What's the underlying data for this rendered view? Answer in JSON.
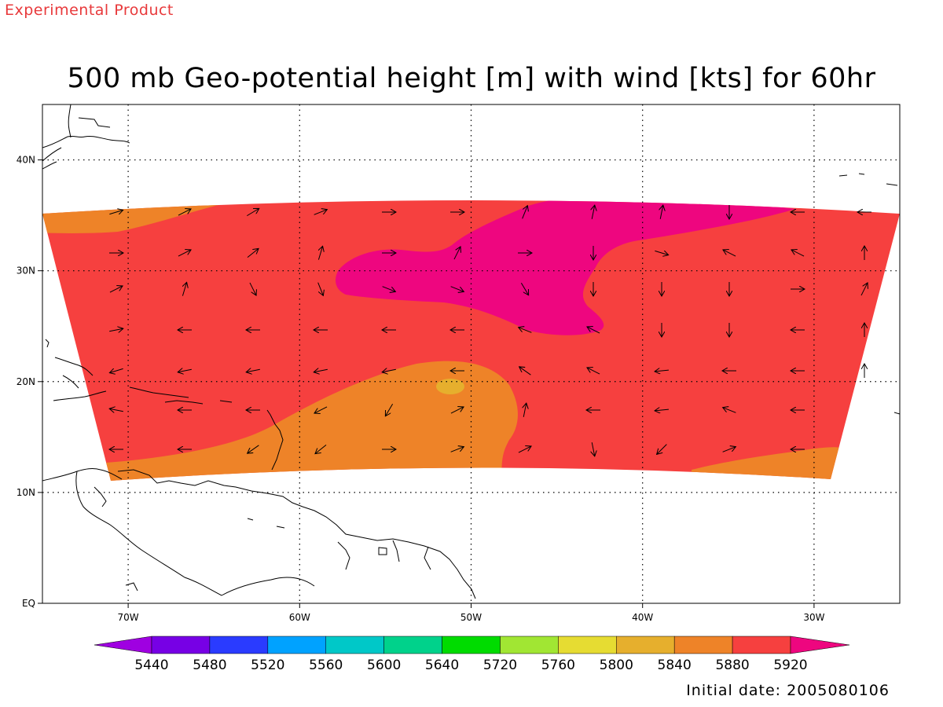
{
  "header": {
    "experimental_label": "Experimental Product",
    "title": "500 mb Geo-potential height [m] with wind [kts] for 60hr"
  },
  "footer": {
    "initial_date": "Initial date: 2005080106"
  },
  "map": {
    "lon_range": [
      -75,
      -25
    ],
    "lat_range": [
      0,
      45
    ],
    "grid": "dotted",
    "lon_ticks": [
      {
        "value": -70,
        "label": "70W"
      },
      {
        "value": -60,
        "label": "60W"
      },
      {
        "value": -50,
        "label": "50W"
      },
      {
        "value": -40,
        "label": "40W"
      },
      {
        "value": -30,
        "label": "30W"
      }
    ],
    "lat_ticks": [
      {
        "value": 0,
        "label": "EQ"
      },
      {
        "value": 10,
        "label": "10N"
      },
      {
        "value": 20,
        "label": "20N"
      },
      {
        "value": 30,
        "label": "30N"
      },
      {
        "value": 40,
        "label": "40N"
      }
    ],
    "colors": {
      "h5840": "#ee8328",
      "h5880": "#f6403f",
      "h5920": "#ee067f",
      "h5800": "#e6af2d"
    }
  },
  "colorbar": {
    "labels": [
      "5440",
      "5480",
      "5520",
      "5560",
      "5600",
      "5640",
      "5720",
      "5760",
      "5800",
      "5840",
      "5880",
      "5920"
    ],
    "colors": [
      "#9f00e1",
      "#7700e5",
      "#2a3bff",
      "#00a2ff",
      "#00c8c8",
      "#00d28b",
      "#00dc00",
      "#a1e633",
      "#e6dc32",
      "#e6af2d",
      "#ee8328",
      "#f6403f",
      "#ee067f"
    ]
  }
}
